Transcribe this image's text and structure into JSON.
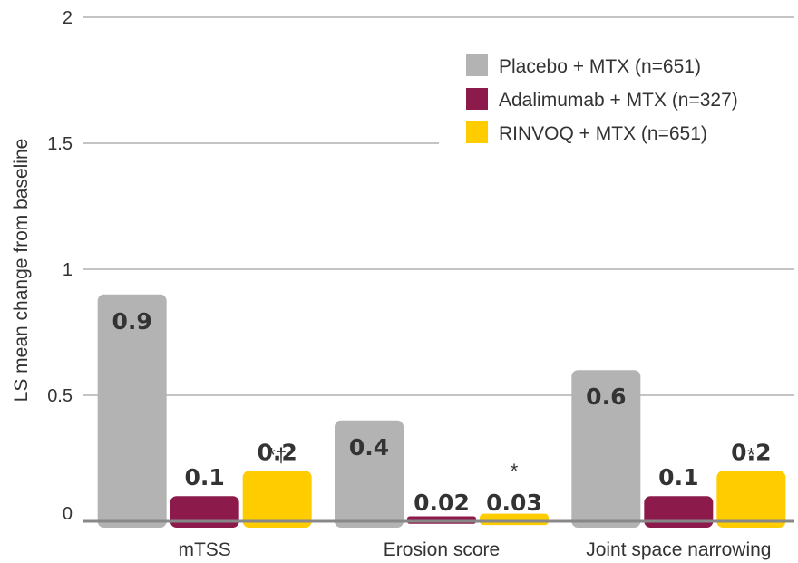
{
  "chart_data": {
    "type": "bar",
    "ylabel": "LS mean change from baseline",
    "xlabel": "",
    "ylim": [
      0,
      2
    ],
    "yticks": [
      "0",
      "0.5",
      "1",
      "1.5",
      "2"
    ],
    "grid": true,
    "legend_position": "top-right",
    "categories": [
      "mTSS",
      "Erosion score",
      "Joint space narrowing"
    ],
    "series": [
      {
        "name": "Placebo + MTX (n=651)",
        "color": "#b3b3b3",
        "values": [
          0.9,
          0.4,
          0.6
        ],
        "labels": [
          "0.9",
          "0.4",
          "0.6"
        ],
        "annotations": [
          "",
          "",
          ""
        ]
      },
      {
        "name": "Adalimumab + MTX (n=327)",
        "color": "#8c1a4b",
        "values": [
          0.1,
          0.02,
          0.1
        ],
        "labels": [
          "0.1",
          "0.02",
          "0.1"
        ],
        "annotations": [
          "",
          "",
          ""
        ]
      },
      {
        "name": "RINVOQ + MTX (n=651)",
        "color": "#ffcc00",
        "values": [
          0.2,
          0.03,
          0.2
        ],
        "labels": [
          "0.2",
          "0.03",
          "0.2"
        ],
        "annotations": [
          "*†",
          "*",
          "*"
        ]
      }
    ]
  }
}
